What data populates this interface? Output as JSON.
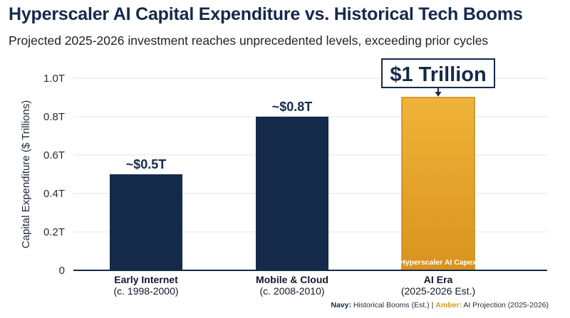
{
  "title": "Hyperscaler AI Capital Expenditure vs. Historical Tech Booms",
  "subtitle": "Projected 2025-2026 investment reaches unprecedented levels, exceeding prior cycles",
  "colors": {
    "historical": "#15294b",
    "ai_projection": "#e8a52a",
    "grid": "#e3e3e3",
    "axis": "#15294b"
  },
  "chart_data": {
    "type": "bar",
    "title": "Hyperscaler AI Capital Expenditure vs. Historical Tech Booms",
    "subtitle": "Projected 2025-2026 investment reaches unprecedented levels, exceeding prior cycles",
    "xlabel": "",
    "ylabel": "Capital Expenditure ($ Trillions)",
    "ylim": [
      0,
      1.0
    ],
    "yticks": [
      0,
      0.2,
      0.4,
      0.6,
      0.8,
      1.0
    ],
    "ytick_labels": [
      "0",
      "0.2T",
      "0.4T",
      "0.6T",
      "0.8T",
      "1.0T"
    ],
    "grid": true,
    "categories": [
      "Early Internet",
      "Mobile & Cloud",
      "AI Era"
    ],
    "category_sublabels": [
      "(c. 1998-2000)",
      "(c. 2008-2010)",
      "(2025-2026 Est.)"
    ],
    "values": [
      0.5,
      0.8,
      0.9
    ],
    "bar_groups": [
      "historical",
      "historical",
      "ai_projection"
    ],
    "data_labels": [
      "~$0.5T",
      "~$0.8T",
      ""
    ],
    "inner_labels": [
      "",
      "",
      "Hyperscaler AI Capex"
    ],
    "callout": {
      "text": "$1 Trillion",
      "category_index": 2
    }
  },
  "footnote": {
    "navy_key": "Navy:",
    "navy_text": " Historical Booms (Est.) | ",
    "amber_key": "Amber:",
    "amber_text": " AI Projection (2025-2026)"
  }
}
